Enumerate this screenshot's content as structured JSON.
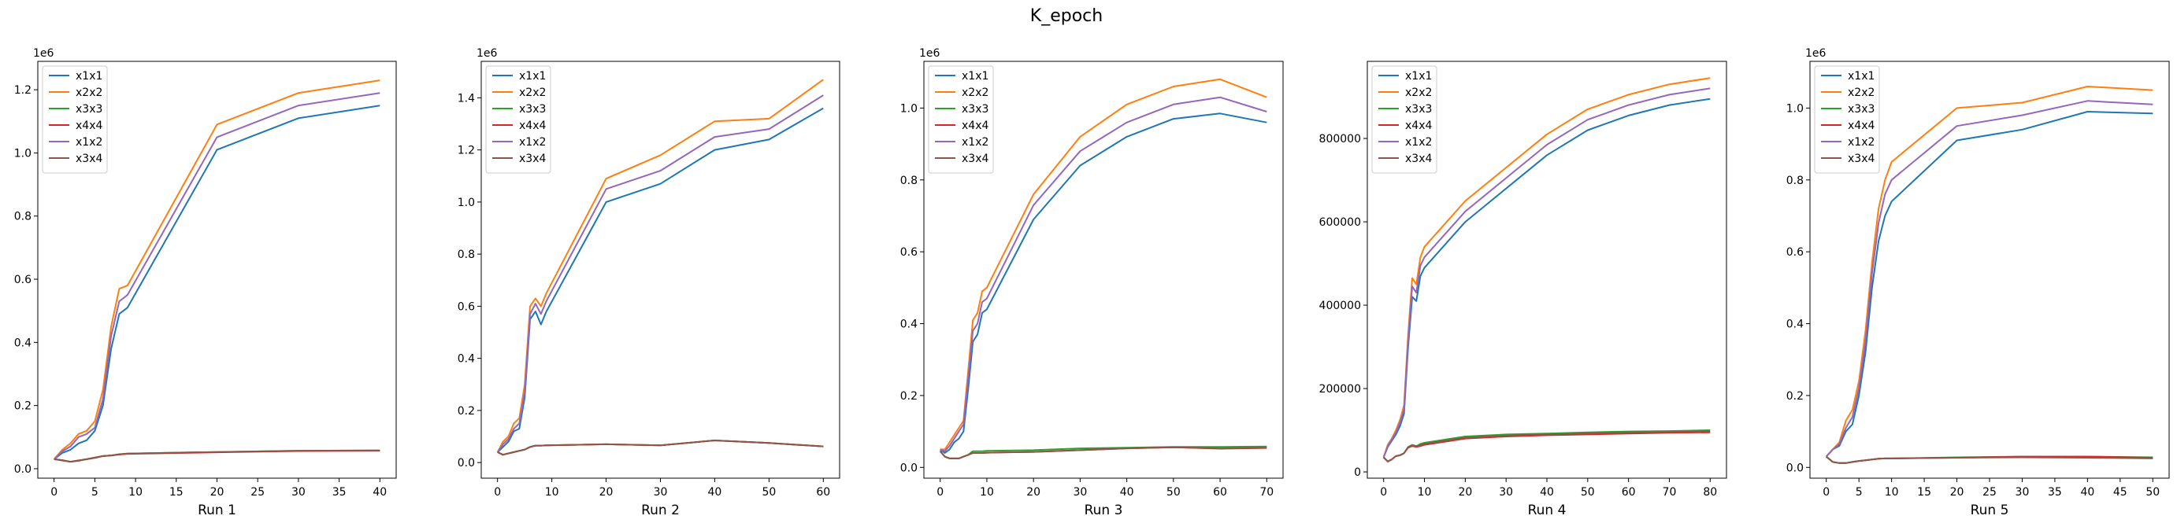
{
  "figure": {
    "suptitle": "K_epoch"
  },
  "colors": {
    "x1x1": "#1f77b4",
    "x2x2": "#ff7f0e",
    "x3x3": "#2ca02c",
    "x4x4": "#d62728",
    "x1x2": "#9467bd",
    "x3x4": "#8c564b"
  },
  "chart_data": [
    {
      "type": "line",
      "xlabel": "Run 1",
      "multiplier": "1e6",
      "xlim": [
        -2,
        42
      ],
      "ylim": [
        -0.03,
        1.29
      ],
      "xticks": [
        0,
        5,
        10,
        15,
        20,
        25,
        30,
        35,
        40
      ],
      "yticks": [
        0.0,
        0.2,
        0.4,
        0.6,
        0.8,
        1.0,
        1.2
      ],
      "ytick_labels": [
        "0.0",
        "0.2",
        "0.4",
        "0.6",
        "0.8",
        "1.0",
        "1.2"
      ],
      "legend": "top-left",
      "x": [
        0,
        1,
        2,
        3,
        4,
        5,
        6,
        7,
        8,
        9,
        20,
        30,
        40
      ],
      "series": [
        {
          "name": "x1x1",
          "values": [
            0.03,
            0.05,
            0.06,
            0.08,
            0.09,
            0.12,
            0.2,
            0.38,
            0.49,
            0.51,
            1.01,
            1.11,
            1.15
          ]
        },
        {
          "name": "x2x2",
          "values": [
            0.03,
            0.06,
            0.08,
            0.11,
            0.12,
            0.15,
            0.25,
            0.45,
            0.57,
            0.58,
            1.09,
            1.19,
            1.23
          ]
        },
        {
          "name": "x3x3",
          "values": [
            0.03,
            0.027,
            0.022,
            0.026,
            0.03,
            0.035,
            0.04,
            0.042,
            0.045,
            0.048,
            0.053,
            0.057,
            0.058
          ]
        },
        {
          "name": "x4x4",
          "values": [
            0.03,
            0.027,
            0.022,
            0.026,
            0.03,
            0.035,
            0.04,
            0.042,
            0.045,
            0.047,
            0.052,
            0.056,
            0.057
          ]
        },
        {
          "name": "x1x2",
          "values": [
            0.03,
            0.055,
            0.07,
            0.1,
            0.11,
            0.13,
            0.22,
            0.42,
            0.53,
            0.55,
            1.05,
            1.15,
            1.19
          ]
        },
        {
          "name": "x3x4",
          "values": [
            0.03,
            0.026,
            0.022,
            0.025,
            0.03,
            0.034,
            0.04,
            0.042,
            0.046,
            0.048,
            0.053,
            0.057,
            0.058
          ]
        }
      ]
    },
    {
      "type": "line",
      "xlabel": "Run 2",
      "multiplier": "1e6",
      "xlim": [
        -3,
        63
      ],
      "ylim": [
        -0.06,
        1.54
      ],
      "xticks": [
        0,
        10,
        20,
        30,
        40,
        50,
        60
      ],
      "yticks": [
        0.0,
        0.2,
        0.4,
        0.6,
        0.8,
        1.0,
        1.2,
        1.4
      ],
      "ytick_labels": [
        "0.0",
        "0.2",
        "0.4",
        "0.6",
        "0.8",
        "1.0",
        "1.2",
        "1.4"
      ],
      "legend": "top-left",
      "x": [
        0,
        1,
        2,
        3,
        4,
        5,
        6,
        7,
        8,
        9,
        20,
        30,
        40,
        50,
        60
      ],
      "series": [
        {
          "name": "x1x1",
          "values": [
            0.04,
            0.06,
            0.08,
            0.12,
            0.13,
            0.25,
            0.55,
            0.58,
            0.53,
            0.58,
            1.0,
            1.07,
            1.2,
            1.24,
            1.36
          ]
        },
        {
          "name": "x2x2",
          "values": [
            0.04,
            0.08,
            0.1,
            0.15,
            0.17,
            0.3,
            0.6,
            0.63,
            0.6,
            0.65,
            1.09,
            1.18,
            1.31,
            1.32,
            1.47
          ]
        },
        {
          "name": "x3x3",
          "values": [
            0.04,
            0.03,
            0.035,
            0.04,
            0.045,
            0.05,
            0.06,
            0.065,
            0.065,
            0.066,
            0.07,
            0.066,
            0.085,
            0.075,
            0.062
          ]
        },
        {
          "name": "x4x4",
          "values": [
            0.04,
            0.03,
            0.035,
            0.04,
            0.045,
            0.05,
            0.06,
            0.065,
            0.065,
            0.066,
            0.07,
            0.066,
            0.085,
            0.075,
            0.062
          ]
        },
        {
          "name": "x1x2",
          "values": [
            0.04,
            0.07,
            0.09,
            0.13,
            0.15,
            0.27,
            0.57,
            0.61,
            0.57,
            0.62,
            1.05,
            1.12,
            1.25,
            1.28,
            1.41
          ]
        },
        {
          "name": "x3x4",
          "values": [
            0.04,
            0.03,
            0.035,
            0.04,
            0.045,
            0.05,
            0.06,
            0.065,
            0.065,
            0.066,
            0.07,
            0.066,
            0.085,
            0.075,
            0.062
          ]
        }
      ]
    },
    {
      "type": "line",
      "xlabel": "Run 3",
      "multiplier": "1e6",
      "xlim": [
        -3.5,
        73.5
      ],
      "ylim": [
        -0.03,
        1.13
      ],
      "xticks": [
        0,
        10,
        20,
        30,
        40,
        50,
        60,
        70
      ],
      "yticks": [
        0.0,
        0.2,
        0.4,
        0.6,
        0.8,
        1.0
      ],
      "ytick_labels": [
        "0.0",
        "0.2",
        "0.4",
        "0.6",
        "0.8",
        "1.0"
      ],
      "legend": "top-left",
      "x": [
        0,
        1,
        2,
        3,
        4,
        5,
        6,
        7,
        8,
        9,
        10,
        20,
        30,
        40,
        50,
        60,
        70
      ],
      "series": [
        {
          "name": "x1x1",
          "values": [
            0.05,
            0.04,
            0.05,
            0.07,
            0.08,
            0.1,
            0.22,
            0.35,
            0.37,
            0.43,
            0.44,
            0.69,
            0.84,
            0.92,
            0.97,
            0.985,
            0.96
          ]
        },
        {
          "name": "x2x2",
          "values": [
            0.05,
            0.05,
            0.07,
            0.09,
            0.11,
            0.13,
            0.27,
            0.41,
            0.43,
            0.49,
            0.5,
            0.76,
            0.92,
            1.01,
            1.06,
            1.08,
            1.03
          ]
        },
        {
          "name": "x3x3",
          "values": [
            0.045,
            0.03,
            0.025,
            0.025,
            0.025,
            0.03,
            0.035,
            0.045,
            0.045,
            0.045,
            0.046,
            0.048,
            0.053,
            0.055,
            0.057,
            0.057,
            0.058
          ]
        },
        {
          "name": "x4x4",
          "values": [
            0.045,
            0.03,
            0.025,
            0.025,
            0.025,
            0.03,
            0.035,
            0.04,
            0.04,
            0.04,
            0.041,
            0.043,
            0.048,
            0.053,
            0.056,
            0.052,
            0.054
          ]
        },
        {
          "name": "x1x2",
          "values": [
            0.05,
            0.045,
            0.06,
            0.08,
            0.1,
            0.12,
            0.25,
            0.38,
            0.4,
            0.46,
            0.47,
            0.73,
            0.88,
            0.96,
            1.01,
            1.03,
            0.99
          ]
        },
        {
          "name": "x3x4",
          "values": [
            0.045,
            0.03,
            0.025,
            0.025,
            0.025,
            0.03,
            0.035,
            0.04,
            0.04,
            0.04,
            0.041,
            0.043,
            0.048,
            0.053,
            0.056,
            0.053,
            0.055
          ]
        }
      ]
    },
    {
      "type": "line",
      "xlabel": "Run 4",
      "xlim": [
        -4,
        84
      ],
      "ylim": [
        -15000,
        985000
      ],
      "xticks": [
        0,
        10,
        20,
        30,
        40,
        50,
        60,
        70,
        80
      ],
      "yticks": [
        0,
        200000,
        400000,
        600000,
        800000
      ],
      "ytick_labels": [
        "0",
        "200000",
        "400000",
        "600000",
        "800000"
      ],
      "legend": "top-left",
      "x": [
        0,
        1,
        2,
        3,
        4,
        5,
        6,
        7,
        8,
        9,
        10,
        20,
        30,
        40,
        50,
        60,
        70,
        80
      ],
      "series": [
        {
          "name": "x1x1",
          "values": [
            35000,
            60000,
            75000,
            90000,
            110000,
            140000,
            300000,
            420000,
            410000,
            470000,
            490000,
            600000,
            680000,
            760000,
            820000,
            855000,
            880000,
            895000
          ]
        },
        {
          "name": "x2x2",
          "values": [
            35000,
            65000,
            80000,
            100000,
            125000,
            160000,
            330000,
            465000,
            450000,
            515000,
            540000,
            650000,
            730000,
            810000,
            870000,
            905000,
            930000,
            945000
          ]
        },
        {
          "name": "x3x3",
          "values": [
            35000,
            25000,
            30000,
            38000,
            40000,
            45000,
            60000,
            65000,
            62000,
            67000,
            70000,
            85000,
            90000,
            92000,
            95000,
            97000,
            98000,
            100000
          ]
        },
        {
          "name": "x4x4",
          "values": [
            35000,
            25000,
            30000,
            38000,
            40000,
            45000,
            58000,
            62000,
            60000,
            62000,
            65000,
            80000,
            85000,
            88000,
            90000,
            92000,
            94000,
            95000
          ]
        },
        {
          "name": "x1x2",
          "values": [
            35000,
            62000,
            78000,
            95000,
            118000,
            150000,
            315000,
            445000,
            430000,
            495000,
            515000,
            625000,
            705000,
            785000,
            845000,
            880000,
            905000,
            920000
          ]
        },
        {
          "name": "x3x4",
          "values": [
            35000,
            25000,
            30000,
            38000,
            40000,
            45000,
            59000,
            63000,
            61000,
            64000,
            67000,
            82000,
            87000,
            90000,
            92000,
            95000,
            96000,
            97000
          ]
        }
      ]
    },
    {
      "type": "line",
      "xlabel": "Run 5",
      "multiplier": "1e6",
      "xlim": [
        -2.5,
        52.5
      ],
      "ylim": [
        -0.03,
        1.13
      ],
      "xticks": [
        0,
        5,
        10,
        15,
        20,
        25,
        30,
        35,
        40,
        45,
        50
      ],
      "yticks": [
        0.0,
        0.2,
        0.4,
        0.6,
        0.8,
        1.0
      ],
      "ytick_labels": [
        "0.0",
        "0.2",
        "0.4",
        "0.6",
        "0.8",
        "1.0"
      ],
      "legend": "top-left",
      "x": [
        0,
        1,
        2,
        3,
        4,
        5,
        6,
        7,
        8,
        9,
        10,
        20,
        30,
        40,
        50
      ],
      "series": [
        {
          "name": "x1x1",
          "values": [
            0.03,
            0.05,
            0.06,
            0.1,
            0.12,
            0.2,
            0.32,
            0.5,
            0.63,
            0.7,
            0.74,
            0.91,
            0.94,
            0.99,
            0.985
          ]
        },
        {
          "name": "x2x2",
          "values": [
            0.03,
            0.05,
            0.07,
            0.13,
            0.16,
            0.24,
            0.38,
            0.57,
            0.72,
            0.8,
            0.85,
            1.0,
            1.015,
            1.06,
            1.05
          ]
        },
        {
          "name": "x3x3",
          "values": [
            0.03,
            0.015,
            0.012,
            0.012,
            0.015,
            0.018,
            0.02,
            0.022,
            0.024,
            0.025,
            0.025,
            0.028,
            0.03,
            0.03,
            0.028
          ]
        },
        {
          "name": "x4x4",
          "values": [
            0.03,
            0.015,
            0.012,
            0.012,
            0.015,
            0.018,
            0.02,
            0.022,
            0.024,
            0.025,
            0.025,
            0.027,
            0.03,
            0.03,
            0.027
          ]
        },
        {
          "name": "x1x2",
          "values": [
            0.03,
            0.05,
            0.065,
            0.11,
            0.14,
            0.22,
            0.35,
            0.54,
            0.68,
            0.76,
            0.8,
            0.95,
            0.98,
            1.02,
            1.01
          ]
        },
        {
          "name": "x3x4",
          "values": [
            0.03,
            0.015,
            0.012,
            0.012,
            0.015,
            0.018,
            0.02,
            0.022,
            0.024,
            0.025,
            0.025,
            0.027,
            0.028,
            0.027,
            0.025
          ]
        }
      ]
    }
  ]
}
